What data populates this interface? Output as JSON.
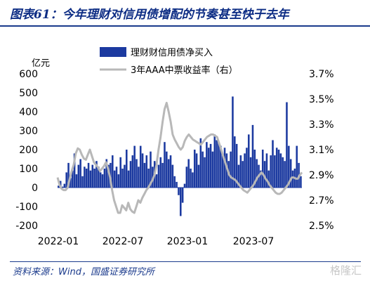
{
  "header": {
    "title": "图表61：今年理财对信用债增配的节奏甚至快于去年"
  },
  "footer": {
    "source": "资料来源：Wind，国盛证券研究所",
    "watermark": "格隆汇"
  },
  "chart_data": {
    "type": "bar+line",
    "left_axis_unit": "亿元",
    "left_axis": {
      "min": -200,
      "max": 600,
      "ticks": [
        "600",
        "500",
        "400",
        "300",
        "200",
        "100",
        "0",
        "-100",
        "-200"
      ]
    },
    "right_axis": {
      "min": 2.5,
      "max": 3.7,
      "ticks": [
        "3.7%",
        "3.5%",
        "3.3%",
        "3.1%",
        "2.9%",
        "2.7%",
        "2.5%"
      ]
    },
    "x_ticks": [
      "2022-01",
      "2022-07",
      "2023-01",
      "2023-07"
    ],
    "legend": [
      {
        "name": "理财财信用债净买入",
        "type": "bar",
        "color": "#1c3aa0"
      },
      {
        "name": "3年AAA中票收益率（右）",
        "type": "line",
        "color": "#b8b8b8"
      }
    ],
    "bar_color": "#1c3aa0",
    "line_color": "#b8b8b8",
    "series_bar_values": [
      10,
      35,
      5,
      20,
      80,
      130,
      50,
      90,
      180,
      70,
      120,
      150,
      60,
      110,
      100,
      130,
      90,
      120,
      100,
      140,
      110,
      80,
      70,
      100,
      150,
      120,
      130,
      170,
      90,
      110,
      70,
      160,
      100,
      120,
      200,
      90,
      140,
      170,
      220,
      150,
      110,
      220,
      180,
      130,
      170,
      100,
      190,
      110,
      140,
      70,
      120,
      160,
      130,
      240,
      190,
      150,
      170,
      120,
      60,
      30,
      -40,
      -150,
      -80,
      20,
      110,
      150,
      100,
      80,
      200,
      180,
      120,
      260,
      190,
      160,
      240,
      210,
      230,
      190,
      280,
      250,
      240,
      220,
      170,
      210,
      180,
      140,
      190,
      480,
      270,
      230,
      120,
      170,
      140,
      180,
      210,
      280,
      160,
      330,
      200,
      150,
      120,
      90,
      200,
      140,
      180,
      90,
      170,
      250,
      170,
      210,
      200,
      180,
      160,
      140,
      450,
      220,
      150,
      90,
      100,
      220,
      130,
      60
    ],
    "series_line_values": [
      2.88,
      2.82,
      2.79,
      2.78,
      2.78,
      2.8,
      2.87,
      2.93,
      2.98,
      3.07,
      3.11,
      3.1,
      3.06,
      3.03,
      3.02,
      3.06,
      3.1,
      3.05,
      3.0,
      2.98,
      2.96,
      2.93,
      2.95,
      2.97,
      3.0,
      2.95,
      2.88,
      2.78,
      2.7,
      2.65,
      2.6,
      2.6,
      2.66,
      2.64,
      2.62,
      2.68,
      2.63,
      2.61,
      2.6,
      2.65,
      2.7,
      2.68,
      2.72,
      2.75,
      2.78,
      2.8,
      2.83,
      2.86,
      2.9,
      2.98,
      3.1,
      3.2,
      3.32,
      3.42,
      3.47,
      3.4,
      3.32,
      3.22,
      3.18,
      3.15,
      3.12,
      3.1,
      3.12,
      3.17,
      3.2,
      3.22,
      3.2,
      3.18,
      3.17,
      3.16,
      3.15,
      3.14,
      3.16,
      3.18,
      3.2,
      3.21,
      3.22,
      3.22,
      3.21,
      3.2,
      3.15,
      3.1,
      3.05,
      3.0,
      2.95,
      2.9,
      2.88,
      2.87,
      2.86,
      2.84,
      2.82,
      2.8,
      2.78,
      2.77,
      2.76,
      2.78,
      2.8,
      2.82,
      2.85,
      2.88,
      2.9,
      2.92,
      2.9,
      2.87,
      2.85,
      2.82,
      2.8,
      2.78,
      2.76,
      2.75,
      2.75,
      2.76,
      2.78,
      2.8,
      2.82,
      2.85,
      2.88,
      2.88,
      2.87,
      2.87,
      2.9,
      2.92
    ]
  }
}
